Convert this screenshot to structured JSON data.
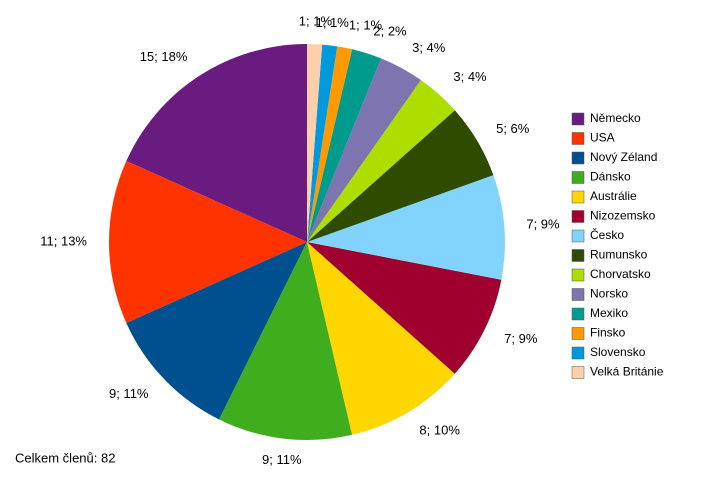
{
  "chart_data": {
    "type": "pie",
    "categories": [
      "Německo",
      "USA",
      "Nový Zéland",
      "Dánsko",
      "Austrálie",
      "Nizozemsko",
      "Česko",
      "Rumunsko",
      "Chorvatsko",
      "Norsko",
      "Mexiko",
      "Finsko",
      "Slovensko",
      "Velká Británie"
    ],
    "values": [
      15,
      11,
      9,
      9,
      8,
      7,
      7,
      5,
      3,
      3,
      2,
      1,
      1,
      1
    ],
    "value_labels": [
      "15; 18%",
      "11; 13%",
      "9; 11%",
      "9; 11%",
      "8; 10%",
      "7; 9%",
      "7; 9%",
      "5; 6%",
      "3; 4%",
      "3; 4%",
      "2; 2%",
      "1; 1%",
      "1; 1%",
      "1; 1%"
    ],
    "colors": [
      "#6a1b80",
      "#ff3300",
      "#004f8e",
      "#40ad1e",
      "#ffd600",
      "#a0002e",
      "#82d4ff",
      "#2f4b00",
      "#aedd00",
      "#7d74b0",
      "#009b8c",
      "#ff9900",
      "#0099dd",
      "#ffcfaa"
    ],
    "legend": "right",
    "annotation": "Celkem členů: 82"
  }
}
